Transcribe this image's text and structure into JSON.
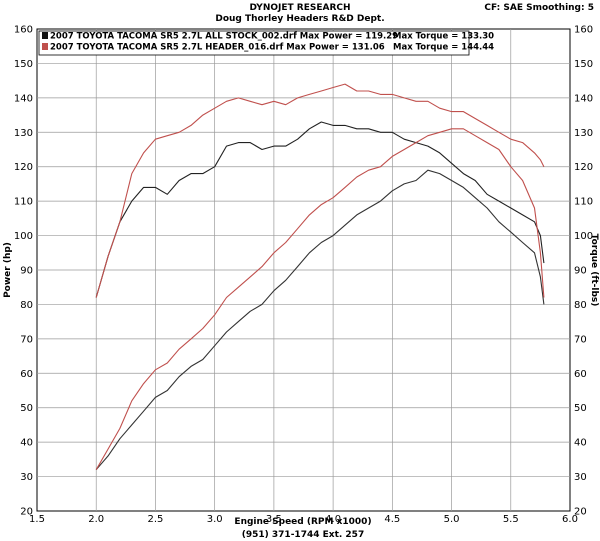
{
  "header": {
    "title": "DYNOJET RESEARCH",
    "subtitle": "Doug Thorley Headers R&D Dept.",
    "settings": "CF: SAE  Smoothing: 5"
  },
  "chart_data": {
    "type": "line",
    "xlabel": "Engine Speed (RPM x1000)",
    "ylabel_left": "Power (hp)",
    "ylabel_right": "Torque (ft-lbs)",
    "footer": "(951) 371-1744 Ext. 257",
    "xlim": [
      1.5,
      6.0
    ],
    "ylim": [
      20,
      160
    ],
    "x_ticks": [
      "1.5",
      "2.0",
      "2.5",
      "3.0",
      "3.5",
      "4.0",
      "4.5",
      "5.0",
      "5.5",
      "6.0"
    ],
    "y_ticks": [
      "20",
      "30",
      "40",
      "50",
      "60",
      "70",
      "80",
      "90",
      "100",
      "110",
      "120",
      "130",
      "140",
      "150",
      "160"
    ],
    "grid": true,
    "legend_position": "top-left",
    "legend": [
      {
        "label": "2007 TOYOTA TACOMA SR5 2.7L ALL STOCK_002.drf Max Power = 119.29",
        "torque_label": "Max Torque = 133.30",
        "color": "#111111"
      },
      {
        "label": "2007 TOYOTA TACOMA SR5 2.7L HEADER_016.drf Max Power = 131.06",
        "torque_label": "Max Torque = 144.44",
        "color": "#c0504d"
      }
    ],
    "series": [
      {
        "name": "2007 TOYOTA TACOMA SR5 2.7L ALL STOCK_002.drf",
        "measure": "torque",
        "color": "#222222",
        "x": [
          2.0,
          2.1,
          2.2,
          2.3,
          2.4,
          2.5,
          2.6,
          2.7,
          2.8,
          2.9,
          3.0,
          3.1,
          3.2,
          3.3,
          3.4,
          3.5,
          3.6,
          3.7,
          3.8,
          3.9,
          4.0,
          4.1,
          4.2,
          4.3,
          4.4,
          4.5,
          4.6,
          4.7,
          4.8,
          4.9,
          5.0,
          5.1,
          5.2,
          5.3,
          5.4,
          5.5,
          5.6,
          5.7,
          5.75,
          5.78
        ],
        "y": [
          82,
          94,
          104,
          110,
          114,
          114,
          112,
          116,
          118,
          118,
          120,
          126,
          127,
          127,
          125,
          126,
          126,
          128,
          131,
          133,
          132,
          132,
          131,
          131,
          130,
          130,
          128,
          127,
          126,
          124,
          121,
          118,
          116,
          112,
          110,
          108,
          106,
          104,
          100,
          92
        ]
      },
      {
        "name": "2007 TOYOTA TACOMA SR5 2.7L HEADER_016.drf",
        "measure": "torque",
        "color": "#c0504d",
        "x": [
          2.0,
          2.1,
          2.2,
          2.3,
          2.4,
          2.5,
          2.6,
          2.7,
          2.8,
          2.9,
          3.0,
          3.1,
          3.2,
          3.3,
          3.4,
          3.5,
          3.6,
          3.7,
          3.8,
          3.9,
          4.0,
          4.1,
          4.2,
          4.3,
          4.4,
          4.5,
          4.6,
          4.7,
          4.8,
          4.9,
          5.0,
          5.1,
          5.2,
          5.3,
          5.4,
          5.5,
          5.6,
          5.7,
          5.75,
          5.78
        ],
        "y": [
          82,
          94,
          104,
          118,
          124,
          128,
          129,
          130,
          132,
          135,
          137,
          139,
          140,
          139,
          138,
          139,
          138,
          140,
          141,
          142,
          143,
          144,
          142,
          142,
          141,
          141,
          140,
          139,
          139,
          137,
          136,
          136,
          134,
          132,
          130,
          128,
          127,
          124,
          122,
          120
        ]
      },
      {
        "name": "2007 TOYOTA TACOMA SR5 2.7L ALL STOCK_002.drf",
        "measure": "power",
        "color": "#333333",
        "x": [
          2.0,
          2.1,
          2.2,
          2.3,
          2.4,
          2.5,
          2.6,
          2.7,
          2.8,
          2.9,
          3.0,
          3.1,
          3.2,
          3.3,
          3.4,
          3.5,
          3.6,
          3.7,
          3.8,
          3.9,
          4.0,
          4.1,
          4.2,
          4.3,
          4.4,
          4.5,
          4.6,
          4.7,
          4.8,
          4.9,
          5.0,
          5.1,
          5.2,
          5.3,
          5.4,
          5.5,
          5.6,
          5.7,
          5.75,
          5.78
        ],
        "y": [
          32,
          36,
          41,
          45,
          49,
          53,
          55,
          59,
          62,
          64,
          68,
          72,
          75,
          78,
          80,
          84,
          87,
          91,
          95,
          98,
          100,
          103,
          106,
          108,
          110,
          113,
          115,
          116,
          119,
          118,
          116,
          114,
          111,
          108,
          104,
          101,
          98,
          95,
          88,
          80
        ]
      },
      {
        "name": "2007 TOYOTA TACOMA SR5 2.7L HEADER_016.drf",
        "measure": "power",
        "color": "#c0504d",
        "x": [
          2.0,
          2.1,
          2.2,
          2.3,
          2.4,
          2.5,
          2.6,
          2.7,
          2.8,
          2.9,
          3.0,
          3.1,
          3.2,
          3.3,
          3.4,
          3.5,
          3.6,
          3.7,
          3.8,
          3.9,
          4.0,
          4.1,
          4.2,
          4.3,
          4.4,
          4.5,
          4.6,
          4.7,
          4.8,
          4.9,
          5.0,
          5.1,
          5.2,
          5.3,
          5.4,
          5.5,
          5.6,
          5.7,
          5.75,
          5.78
        ],
        "y": [
          32,
          38,
          44,
          52,
          57,
          61,
          63,
          67,
          70,
          73,
          77,
          82,
          85,
          88,
          91,
          95,
          98,
          102,
          106,
          109,
          111,
          114,
          117,
          119,
          120,
          123,
          125,
          127,
          129,
          130,
          131,
          131,
          129,
          127,
          125,
          120,
          116,
          108,
          95,
          82
        ]
      }
    ]
  }
}
